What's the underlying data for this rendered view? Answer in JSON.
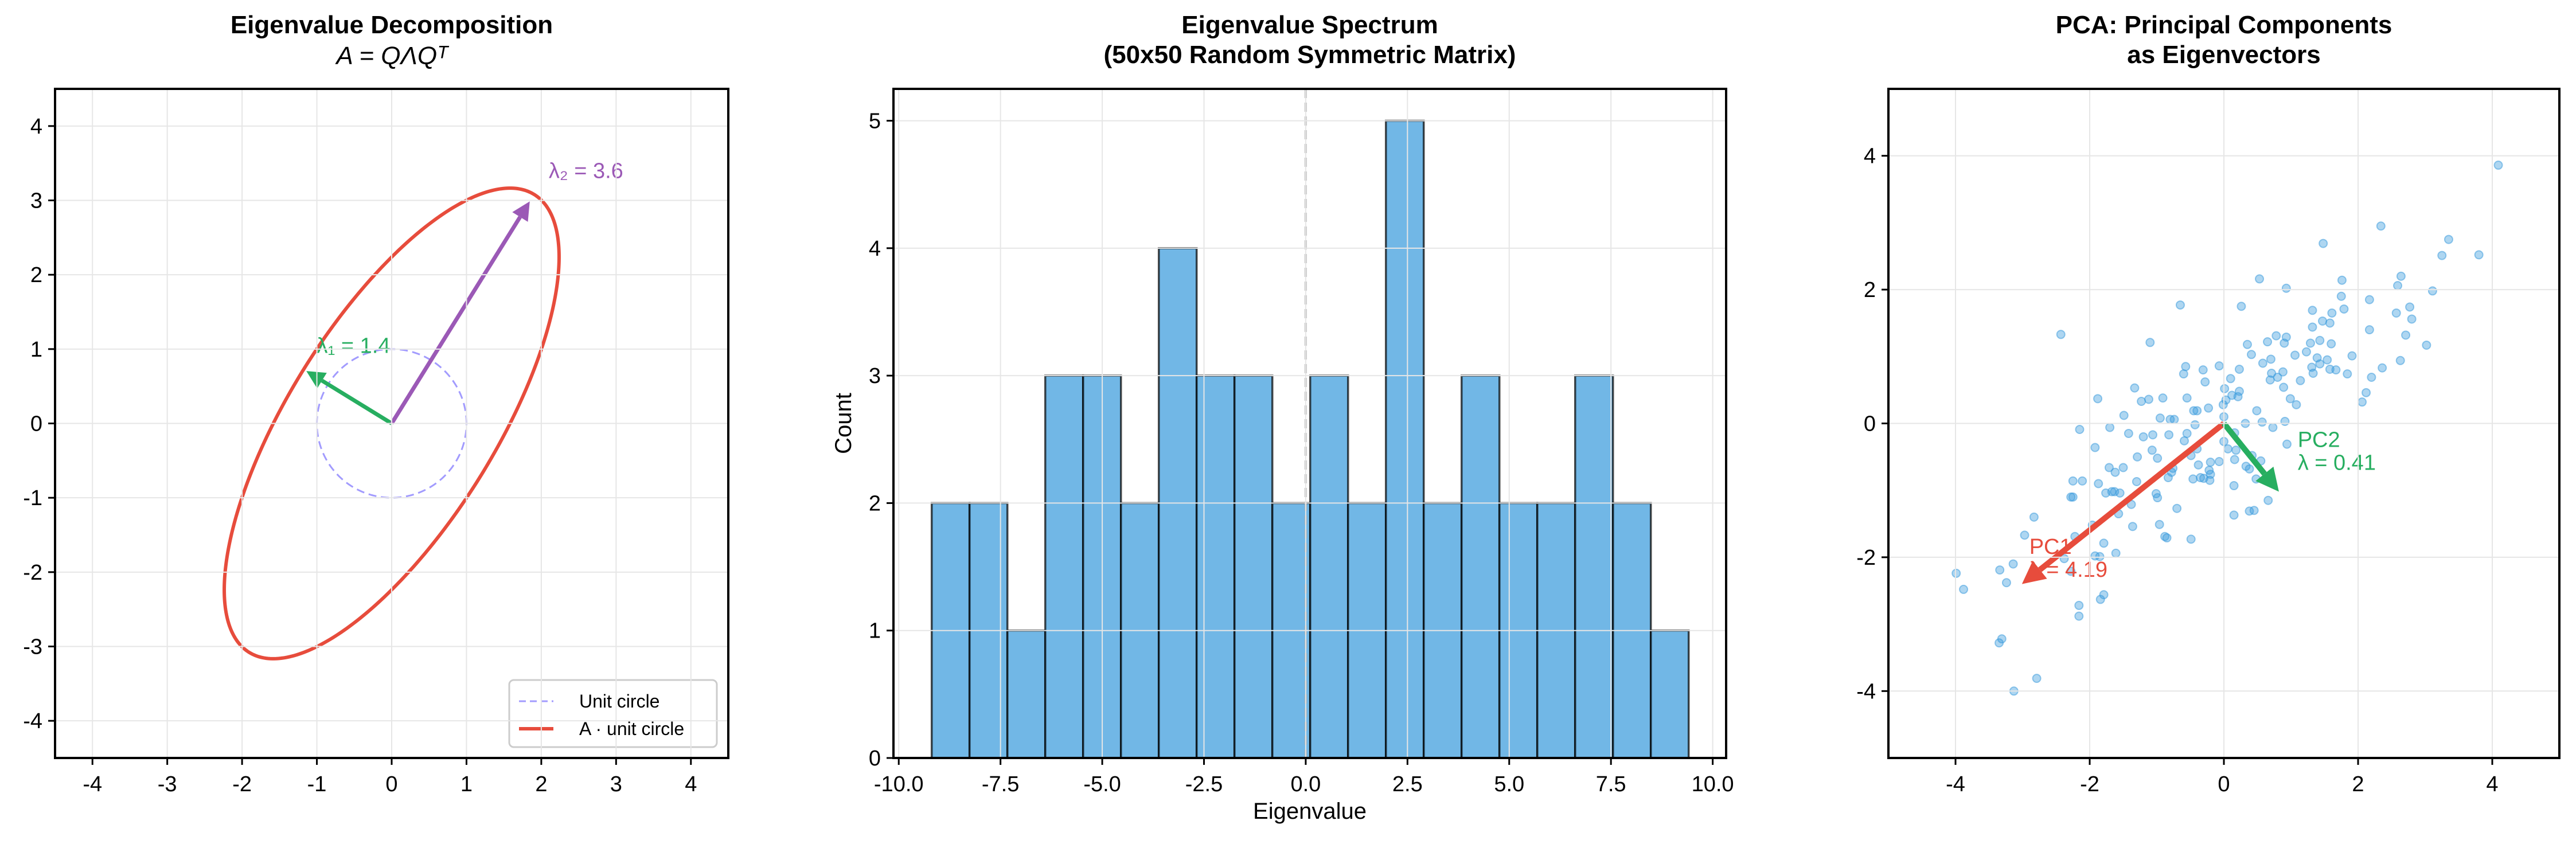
{
  "chart_data": [
    {
      "type": "line",
      "title": "Eigenvalue Decomposition",
      "subtitle": "A = QΛQᵀ",
      "xlim": [
        -4.5,
        4.5
      ],
      "ylim": [
        -4.5,
        4.5
      ],
      "xticks": [
        "-4",
        "-3",
        "-2",
        "-1",
        "0",
        "1",
        "2",
        "3",
        "4"
      ],
      "yticks": [
        "-4",
        "-3",
        "-2",
        "-1",
        "0",
        "1",
        "2",
        "3",
        "4"
      ],
      "grid": true,
      "eigenvalues": [
        1.382,
        3.618
      ],
      "eigenvectors": [
        [
          -0.851,
          0.526
        ],
        [
          0.526,
          0.851
        ]
      ],
      "annotations": [
        {
          "text": "λ₁ = 1.4",
          "x": -1.0,
          "y": 0.95,
          "color": "#27ae60"
        },
        {
          "text": "λ₂ = 3.6",
          "x": 2.1,
          "y": 3.3,
          "color": "#9b59b6"
        }
      ],
      "series": [
        {
          "name": "Unit circle",
          "color": "#a29bfe",
          "style": "dashed"
        },
        {
          "name": "A · unit circle",
          "color": "#e74c3c",
          "style": "solid"
        }
      ],
      "legend": "lower-right"
    },
    {
      "type": "bar",
      "title": "Eigenvalue Spectrum\n(50x50 Random Symmetric Matrix)",
      "title_lines": [
        "Eigenvalue Spectrum",
        "(50x50 Random Symmetric Matrix)"
      ],
      "xlabel": "Eigenvalue",
      "ylabel": "Count",
      "bin_start": -9.19,
      "bin_width": 0.93,
      "values": [
        2,
        2,
        1,
        3,
        3,
        2,
        4,
        3,
        3,
        2,
        3,
        2,
        5,
        2,
        3,
        2,
        2,
        3,
        2,
        1
      ],
      "xlim": [
        -10.13,
        10.33
      ],
      "ylim": [
        0,
        5.25
      ],
      "xticks": [
        "-10.0",
        "-7.5",
        "-5.0",
        "-2.5",
        "0.0",
        "2.5",
        "5.0",
        "7.5",
        "10.0"
      ],
      "xtick_values": [
        -10,
        -7.5,
        -5,
        -2.5,
        0,
        2.5,
        5,
        7.5,
        10
      ],
      "yticks": [
        "0",
        "1",
        "2",
        "3",
        "4",
        "5"
      ],
      "vline_x": 0,
      "grid": true,
      "color": "#5dade2",
      "edgecolor": "#000000"
    },
    {
      "type": "scatter",
      "title_lines": [
        "PCA: Principal Components",
        "as Eigenvectors"
      ],
      "xlim": [
        -5,
        5
      ],
      "ylim": [
        -5,
        5
      ],
      "xticks": [
        "-4",
        "-2",
        "0",
        "2",
        "4"
      ],
      "yticks": [
        "-4",
        "-2",
        "0",
        "2",
        "4"
      ],
      "grid": true,
      "color": "#3498db",
      "x": [
        4.09,
        2.34,
        1.48,
        3.35,
        3.25,
        3.8,
        0.53,
        0.93,
        1.76,
        1.75,
        2.64,
        2.59,
        2.17,
        3.11,
        -0.65,
        0.26,
        1.32,
        1.79,
        1.61,
        2.57,
        2.77,
        2.8,
        1.47,
        1.58,
        1.32,
        2.17,
        2.71,
        -2.43,
        -1.1,
        0.35,
        0.65,
        0.78,
        0.93,
        0.9,
        1.29,
        1.43,
        1.6,
        3.02,
        0.41,
        1.06,
        1.23,
        1.91,
        0.7,
        0.58,
        1.39,
        1.54,
        1.43,
        2.63,
        -0.57,
        -0.07,
        -0.31,
        0.23,
        1.31,
        1.58,
        1.67,
        2.36,
        -0.6,
        0.71,
        0.8,
        0.88,
        1.33,
        1.84,
        2.2,
        0.1,
        -0.28,
        0.69,
        1.14,
        -1.33,
        0.01,
        0.89,
        2.12,
        0.23,
        0.12,
        0.21,
        -1.88,
        -1.23,
        -1.12,
        -0.91,
        -0.55,
        0.03,
        -0.01,
        0.99,
        1.08,
        2.06,
        -0.45,
        -0.4,
        -0.23,
        0.49,
        -1.49,
        -0.95,
        -0.8,
        -0.74,
        0.0,
        0.32,
        0.57,
        0.91,
        -0.43,
        -1.7,
        -2.15,
        0.73,
        -1.42,
        -0.55,
        -1.06,
        -0.82,
        -1.2,
        0.16,
        -0.59,
        0.0,
        0.94,
        -0.4,
        0.06,
        0.18,
        -1.92,
        -1.07,
        -0.49,
        -1.29,
        -0.99,
        0.16,
        0.42,
        0.55,
        -0.2,
        -0.07,
        -0.38,
        -1.71,
        -1.5,
        0.33,
        0.38,
        -0.76,
        -1.62,
        -0.78,
        -0.22,
        -0.2,
        -0.35,
        -0.3,
        -0.46,
        -0.83,
        -0.21,
        0.48,
        -2.25,
        -2.11,
        -1.3,
        -1.87,
        0.15,
        -1.76,
        -1.67,
        -1.63,
        -1.55,
        -1.01,
        -0.99,
        -2.25,
        -2.28,
        -1.38,
        0.66,
        -0.7,
        0.45,
        0.38,
        -1.57,
        0.15,
        -2.83,
        -1.96,
        -0.96,
        -1.36,
        -2.97,
        -2.22,
        -0.88,
        -0.85,
        -0.49,
        -1.79,
        -1.61,
        -1.92,
        -1.85,
        -2.38,
        -3.14,
        -3.34,
        -2.28,
        -3.99,
        -3.24,
        -3.88,
        -1.79,
        -1.84,
        -2.16,
        -2.16,
        -3.31,
        -3.35,
        -2.79,
        -3.13
      ],
      "y": [
        3.86,
        2.95,
        2.69,
        2.75,
        2.51,
        2.52,
        2.16,
        2.02,
        2.14,
        1.9,
        2.2,
        2.06,
        1.85,
        1.98,
        1.77,
        1.75,
        1.69,
        1.71,
        1.65,
        1.65,
        1.74,
        1.56,
        1.53,
        1.5,
        1.44,
        1.4,
        1.32,
        1.33,
        1.21,
        1.18,
        1.22,
        1.31,
        1.29,
        1.2,
        1.2,
        1.24,
        1.19,
        1.17,
        1.03,
        1.02,
        1.07,
        1.01,
        0.96,
        0.9,
        0.98,
        0.95,
        0.89,
        0.94,
        0.85,
        0.86,
        0.8,
        0.81,
        0.84,
        0.81,
        0.8,
        0.83,
        0.74,
        0.75,
        0.69,
        0.77,
        0.75,
        0.74,
        0.69,
        0.67,
        0.62,
        0.65,
        0.64,
        0.53,
        0.52,
        0.54,
        0.46,
        0.48,
        0.42,
        0.4,
        0.37,
        0.33,
        0.36,
        0.38,
        0.38,
        0.35,
        0.28,
        0.37,
        0.28,
        0.32,
        0.19,
        0.19,
        0.23,
        0.19,
        0.12,
        0.08,
        0.06,
        0.06,
        0.1,
        0.0,
        0.02,
        0.03,
        -0.02,
        -0.06,
        -0.09,
        -0.06,
        -0.15,
        -0.15,
        -0.17,
        -0.17,
        -0.2,
        -0.14,
        -0.26,
        -0.27,
        -0.31,
        -0.38,
        -0.38,
        -0.4,
        -0.36,
        -0.4,
        -0.48,
        -0.5,
        -0.52,
        -0.54,
        -0.48,
        -0.56,
        -0.58,
        -0.57,
        -0.62,
        -0.66,
        -0.66,
        -0.64,
        -0.68,
        -0.67,
        -0.73,
        -0.73,
        -0.7,
        -0.76,
        -0.81,
        -0.82,
        -0.83,
        -0.81,
        -0.85,
        -0.83,
        -0.86,
        -0.86,
        -0.87,
        -0.9,
        -0.93,
        -1.04,
        -1.02,
        -1.02,
        -1.04,
        -1.05,
        -1.11,
        -1.1,
        -1.1,
        -1.21,
        -1.15,
        -1.27,
        -1.3,
        -1.31,
        -1.35,
        -1.37,
        -1.4,
        -1.52,
        -1.51,
        -1.54,
        -1.67,
        -1.69,
        -1.69,
        -1.71,
        -1.73,
        -1.79,
        -1.94,
        -1.98,
        -1.99,
        -2.02,
        -2.1,
        -2.19,
        -2.21,
        -2.24,
        -2.38,
        -2.48,
        -2.56,
        -2.63,
        -2.72,
        -2.88,
        -3.22,
        -3.28,
        -3.81,
        -4.0
      ],
      "arrows": [
        {
          "label": "PC1",
          "eigen_label": "λ = 4.19",
          "dx": -3.01,
          "dy": -2.4,
          "color": "#e74c3c",
          "label_x": -2.9,
          "label_y": -1.95
        },
        {
          "label": "PC2",
          "eigen_label": "λ = 0.41",
          "dx": 0.82,
          "dy": -1.02,
          "color": "#27ae60",
          "label_x": 1.1,
          "label_y": -0.35
        }
      ]
    }
  ]
}
